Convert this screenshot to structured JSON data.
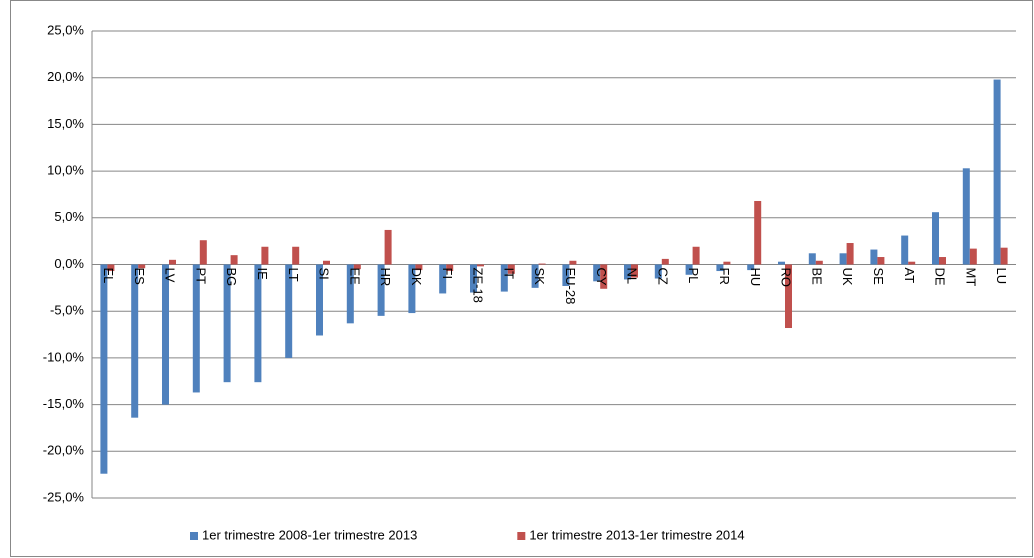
{
  "chart_data": {
    "type": "bar",
    "categories": [
      "EL",
      "ES",
      "LV",
      "PT",
      "BG",
      "IE",
      "LT",
      "SI",
      "EE",
      "HR",
      "DK",
      "FI",
      "ZE-18",
      "IT",
      "SK",
      "EU-28",
      "CY",
      "NL",
      "CZ",
      "PL",
      "FR",
      "HU",
      "RO",
      "BE",
      "UK",
      "SE",
      "AT",
      "DE",
      "MT",
      "LU"
    ],
    "series": [
      {
        "name": "1er trimestre 2008-1er trimestre 2013",
        "color": "#4f81bd",
        "values": [
          -22.4,
          -16.4,
          -15.0,
          -13.7,
          -12.6,
          -12.6,
          -10.0,
          -7.6,
          -6.3,
          -5.5,
          -5.2,
          -3.1,
          -3.0,
          -2.9,
          -2.5,
          -2.3,
          -1.8,
          -1.6,
          -1.5,
          -1.1,
          -0.7,
          -0.6,
          0.3,
          1.2,
          1.2,
          1.6,
          3.1,
          5.6,
          10.3,
          19.8
        ]
      },
      {
        "name": "1er trimestre 2013-1er trimestre 2014",
        "color": "#c0504d",
        "values": [
          -0.7,
          -0.4,
          0.5,
          2.6,
          1.0,
          1.9,
          1.9,
          0.4,
          -0.5,
          3.7,
          -0.6,
          -0.7,
          -0.2,
          -1.0,
          0.1,
          0.4,
          -2.6,
          -1.4,
          0.6,
          1.9,
          0.3,
          6.8,
          -6.8,
          0.4,
          2.3,
          0.8,
          0.3,
          0.8,
          1.7,
          1.8
        ]
      }
    ],
    "ylim": [
      -25,
      25
    ],
    "yticks": [
      {
        "value": -25,
        "label": "-25,0%"
      },
      {
        "value": -20,
        "label": "-20,0%"
      },
      {
        "value": -15,
        "label": "-15,0%"
      },
      {
        "value": -10,
        "label": "-10,0%"
      },
      {
        "value": -5,
        "label": "-5,0%"
      },
      {
        "value": 0,
        "label": "0,0%"
      },
      {
        "value": 5,
        "label": "5,0%"
      },
      {
        "value": 10,
        "label": "10,0%"
      },
      {
        "value": 15,
        "label": "15,0%"
      },
      {
        "value": 20,
        "label": "20,0%"
      },
      {
        "value": 25,
        "label": "25,0%"
      }
    ],
    "grid": true,
    "legend": "bottom"
  }
}
